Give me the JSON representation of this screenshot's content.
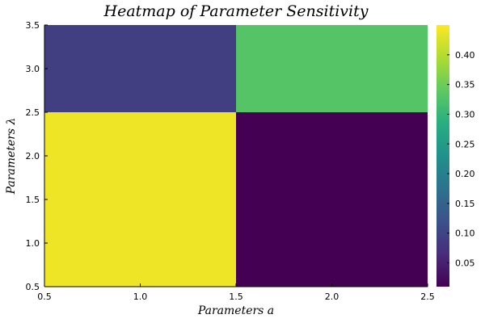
{
  "chart_data": {
    "type": "heatmap",
    "title": "Heatmap of Parameter Sensitivity",
    "xlabel": "Parameters a",
    "ylabel": "Parameters λ",
    "x": [
      1.0,
      2.0
    ],
    "y": [
      1.5,
      3.0
    ],
    "x_edges": [
      0.5,
      1.5,
      2.5
    ],
    "y_edges": [
      0.5,
      2.5,
      3.5
    ],
    "values": [
      [
        0.44,
        0.01
      ],
      [
        0.09,
        0.33
      ]
    ],
    "xlim": [
      0.5,
      2.5
    ],
    "ylim": [
      0.5,
      3.5
    ],
    "xticks": [
      "0.5",
      "1.0",
      "1.5",
      "2.0",
      "2.5"
    ],
    "yticks": [
      "0.5",
      "1.0",
      "1.5",
      "2.0",
      "2.5",
      "3.0",
      "3.5"
    ],
    "colorbar": {
      "colormap": "viridis",
      "range": [
        0.01,
        0.45
      ],
      "ticks": [
        "0.05",
        "0.10",
        "0.15",
        "0.20",
        "0.25",
        "0.30",
        "0.35",
        "0.40"
      ]
    },
    "grid": false,
    "legend": "none"
  }
}
